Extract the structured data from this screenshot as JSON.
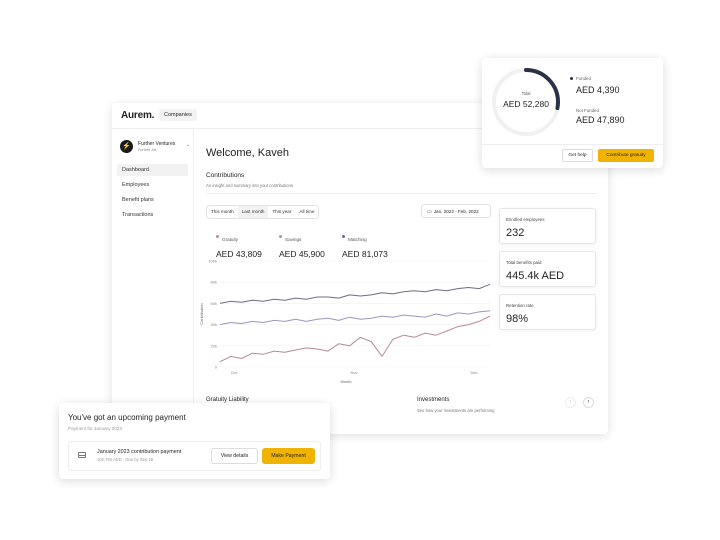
{
  "app": {
    "logo": "Aurem.",
    "companies_label": "Companies"
  },
  "org": {
    "initial": "⚡",
    "name": "Further Ventures",
    "sub": "Further Jet"
  },
  "sidebar": {
    "items": [
      {
        "label": "Dashboard",
        "active": true
      },
      {
        "label": "Employees"
      },
      {
        "label": "Benefit plans"
      },
      {
        "label": "Transactions"
      }
    ]
  },
  "main": {
    "welcome": "Welcome, Kaveh",
    "contributions_title": "Contributions",
    "contributions_sub": "An insight and summary into your contributions",
    "range_tabs": [
      {
        "label": "This month"
      },
      {
        "label": "Last month",
        "active": true
      },
      {
        "label": "This year"
      },
      {
        "label": "All time"
      }
    ],
    "date_range": "Jan, 2022 - Feb, 2022",
    "legend": [
      {
        "label": "Gratuity",
        "value": "AED 43,809",
        "color": "#b58a9c"
      },
      {
        "label": "Savings",
        "value": "AED 45,900",
        "color": "#9c97bf"
      },
      {
        "label": "Matching",
        "value": "AED 81,073",
        "color": "#6f6c86"
      }
    ]
  },
  "stats": [
    {
      "label": "Enrolled employees",
      "value": "232"
    },
    {
      "label": "Total benefits paid",
      "value": "445.4k AED"
    },
    {
      "label": "Retention rate",
      "value": "98%"
    }
  ],
  "bottom": {
    "gratuity_title": "Gratuity Liability",
    "investments_title": "Investments",
    "investments_sub": "See how your investments are performing"
  },
  "funded_card": {
    "total_label": "Total",
    "total_value": "AED 52,280",
    "funded_label": "Funded",
    "funded_value": "AED 4,390",
    "not_funded_label": "Not Funded",
    "not_funded_value": "AED 47,890",
    "funded_fraction": 0.084,
    "help_label": "Get help",
    "contribute_label": "Contribute gratuity"
  },
  "payment_card": {
    "title": "You've got an upcoming payment",
    "sub": "Payment for January 2023",
    "item_title": "January 2023 contribution payment",
    "item_sub": "102,784 AED · Due by Sep 28",
    "details_label": "View details",
    "pay_label": "Make Payment"
  },
  "chart_data": {
    "type": "line",
    "ylabel": "Contribution",
    "xlabel": "Month",
    "yticks": [
      "100k",
      "80k",
      "60k",
      "40k",
      "20k",
      "0"
    ],
    "xticks": [
      "Oct",
      "Nov",
      "Dec"
    ],
    "ylim": [
      0,
      100000
    ],
    "series": [
      {
        "name": "Matching",
        "color": "#6f6c86",
        "values": [
          60000,
          62000,
          61000,
          63000,
          62000,
          64000,
          63000,
          65000,
          64000,
          66000,
          66000,
          65000,
          68000,
          67000,
          68000,
          70000,
          69000,
          71000,
          72000,
          71000,
          73000,
          72000,
          74000,
          75000,
          74000,
          78000
        ]
      },
      {
        "name": "Savings",
        "color": "#9c97bf",
        "values": [
          40000,
          42000,
          41000,
          43000,
          42000,
          44000,
          43000,
          45000,
          43000,
          45000,
          46000,
          44000,
          47000,
          45000,
          46000,
          48000,
          47000,
          49000,
          48000,
          47000,
          50000,
          48000,
          51000,
          50000,
          52000,
          53000
        ]
      },
      {
        "name": "Gratuity",
        "color": "#b58a9c",
        "values": [
          5000,
          10000,
          8000,
          13000,
          12000,
          15000,
          14000,
          16000,
          18000,
          17000,
          15000,
          22000,
          20000,
          28000,
          24000,
          10000,
          26000,
          30000,
          28000,
          32000,
          30000,
          34000,
          38000,
          40000,
          43000,
          48000
        ]
      }
    ]
  }
}
